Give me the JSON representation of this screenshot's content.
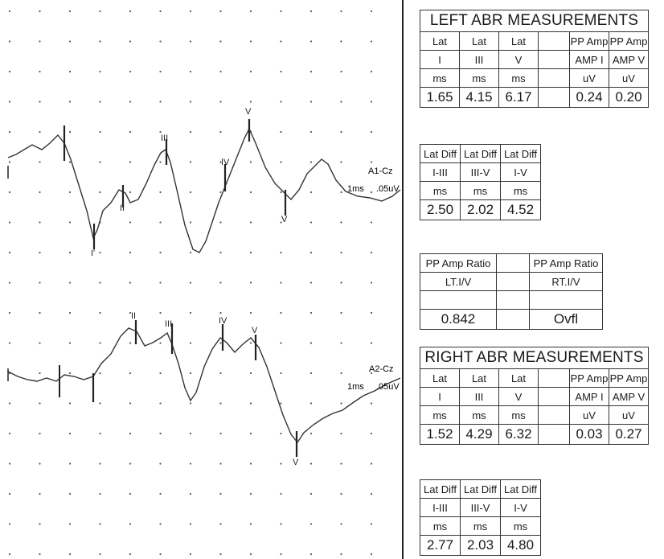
{
  "chart_data": {
    "type": "line",
    "series": [
      {
        "name": "A1-Cz",
        "scale": [
          "1ms",
          ".05uV"
        ],
        "peaks": [
          {
            "label": "I",
            "label2": "I'"
          },
          {
            "label": "II",
            "label2": "II"
          },
          {
            "label": "III"
          },
          {
            "label": "IV"
          },
          {
            "label": "V",
            "label2": "V"
          }
        ]
      },
      {
        "name": "A2-Cz",
        "scale": [
          "1ms",
          ".05uV"
        ],
        "peaks": [
          {
            "label": "II"
          },
          {
            "label": "III"
          },
          {
            "label": "IV"
          },
          {
            "label": "V",
            "label2": "V"
          },
          {
            "label": "I'"
          }
        ]
      }
    ],
    "grid": "dotted"
  },
  "left_abr": {
    "title": "LEFT ABR MEASUREMENTS",
    "row1": [
      "Lat",
      "Lat",
      "Lat",
      "",
      "PP Amp",
      "PP Amp"
    ],
    "row2": [
      "I",
      "III",
      "V",
      "",
      "AMP I",
      "AMP V"
    ],
    "row3": [
      "ms",
      "ms",
      "ms",
      "",
      "uV",
      "uV"
    ],
    "values": [
      "1.65",
      "4.15",
      "6.17",
      "",
      "0.24",
      "0.20"
    ]
  },
  "left_diff": {
    "row1": [
      "Lat Diff",
      "Lat Diff",
      "Lat Diff"
    ],
    "row2": [
      "I-III",
      "III-V",
      "I-V"
    ],
    "row3": [
      "ms",
      "ms",
      "ms"
    ],
    "values": [
      "2.50",
      "2.02",
      "4.52"
    ]
  },
  "ratio": {
    "row1": [
      "PP Amp Ratio",
      "",
      "PP Amp Ratio"
    ],
    "row2": [
      "LT.I/V",
      "",
      "RT.I/V"
    ],
    "row3": [
      "",
      "",
      ""
    ],
    "values": [
      "0.842",
      "",
      "Ovfl"
    ]
  },
  "right_abr": {
    "title": "RIGHT ABR MEASUREMENTS",
    "row1": [
      "Lat",
      "Lat",
      "Lat",
      "",
      "PP Amp",
      "PP Amp"
    ],
    "row2": [
      "I",
      "III",
      "V",
      "",
      "AMP I",
      "AMP V"
    ],
    "row3": [
      "ms",
      "ms",
      "ms",
      "",
      "uV",
      "uV"
    ],
    "values": [
      "1.52",
      "4.29",
      "6.32",
      "",
      "0.03",
      "0.27"
    ]
  },
  "right_diff": {
    "row1": [
      "Lat Diff",
      "Lat Diff",
      "Lat Diff"
    ],
    "row2": [
      "I-III",
      "III-V",
      "I-V"
    ],
    "row3": [
      "ms",
      "ms",
      "ms"
    ],
    "values": [
      "2.77",
      "2.03",
      "4.80"
    ]
  }
}
